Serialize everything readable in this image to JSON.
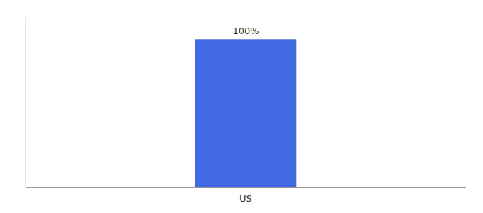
{
  "chart_data": {
    "type": "bar",
    "categories": [
      "US"
    ],
    "values": [
      100
    ],
    "value_labels": [
      "100%"
    ],
    "data_labels": true,
    "color": "#4169e1",
    "ylim": [
      0,
      115
    ],
    "tick_labels": "x"
  }
}
